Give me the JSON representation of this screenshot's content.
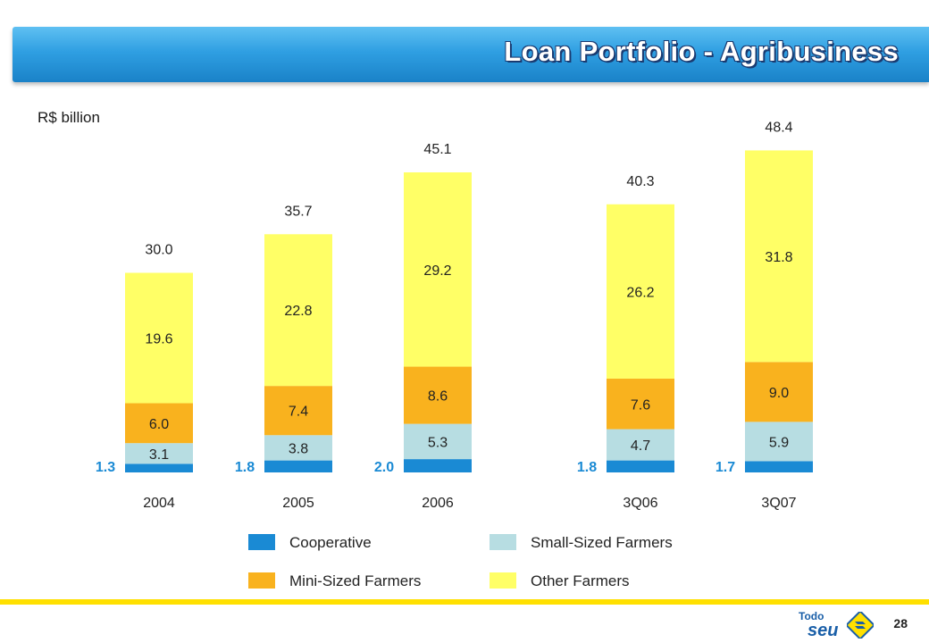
{
  "title": "Loan Portfolio - Agribusiness",
  "unit_label": "R$ billion",
  "page_number": "28",
  "brand": {
    "line1": "Todo",
    "line2": "seu"
  },
  "colors": {
    "cooperative": "#1a8ad4",
    "small": "#b7dde2",
    "mini": "#f9b21e",
    "other": "#ffff66"
  },
  "chart_data": {
    "type": "bar",
    "stacked": true,
    "categories": [
      "2004",
      "2005",
      "2006",
      "3Q06",
      "3Q07"
    ],
    "series": [
      {
        "name": "Cooperative",
        "values": [
          1.3,
          1.8,
          2.0,
          1.8,
          1.7
        ]
      },
      {
        "name": "Small-Sized Farmers",
        "values": [
          3.1,
          3.8,
          5.3,
          4.7,
          5.9
        ]
      },
      {
        "name": "Mini-Sized Farmers",
        "values": [
          6.0,
          7.4,
          8.6,
          7.6,
          9.0
        ]
      },
      {
        "name": "Other Farmers",
        "values": [
          19.6,
          22.8,
          29.2,
          26.2,
          31.8
        ]
      }
    ],
    "totals": [
      "30.0",
      "35.7",
      "45.1",
      "40.3",
      "48.4"
    ],
    "labels": {
      "cooperative": [
        "1.3",
        "1.8",
        "2.0",
        "1.8",
        "1.7"
      ],
      "small": [
        "3.1",
        "3.8",
        "5.3",
        "4.7",
        "5.9"
      ],
      "mini": [
        "6.0",
        "7.4",
        "8.6",
        "7.6",
        "9.0"
      ],
      "other": [
        "19.6",
        "22.8",
        "29.2",
        "26.2",
        "31.8"
      ]
    },
    "legend": [
      "Cooperative",
      "Small-Sized Farmers",
      "Mini-Sized Farmers",
      "Other Farmers"
    ],
    "legend_position": "bottom",
    "grid": false
  }
}
